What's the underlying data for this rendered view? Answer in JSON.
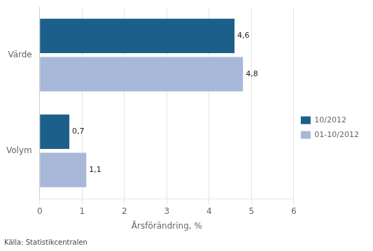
{
  "chart_data": {
    "type": "bar",
    "orientation": "horizontal",
    "categories": [
      "Volym",
      "Värde"
    ],
    "series": [
      {
        "name": "10/2012",
        "color": "#1c5f8a",
        "values": [
          0.7,
          4.6
        ],
        "value_labels": [
          "0,7",
          "4,6"
        ]
      },
      {
        "name": "01-10/2012",
        "color": "#a8b8d8",
        "values": [
          1.1,
          4.8
        ],
        "value_labels": [
          "1,1",
          "4,8"
        ]
      }
    ],
    "x_label": "Årsförändring, %",
    "xlim": [
      0,
      6
    ],
    "xticks": [
      0,
      1,
      2,
      3,
      4,
      5,
      6
    ],
    "source": "Källa: Statistikcentralen",
    "data_labels": true,
    "grid": true,
    "legend": "right"
  }
}
